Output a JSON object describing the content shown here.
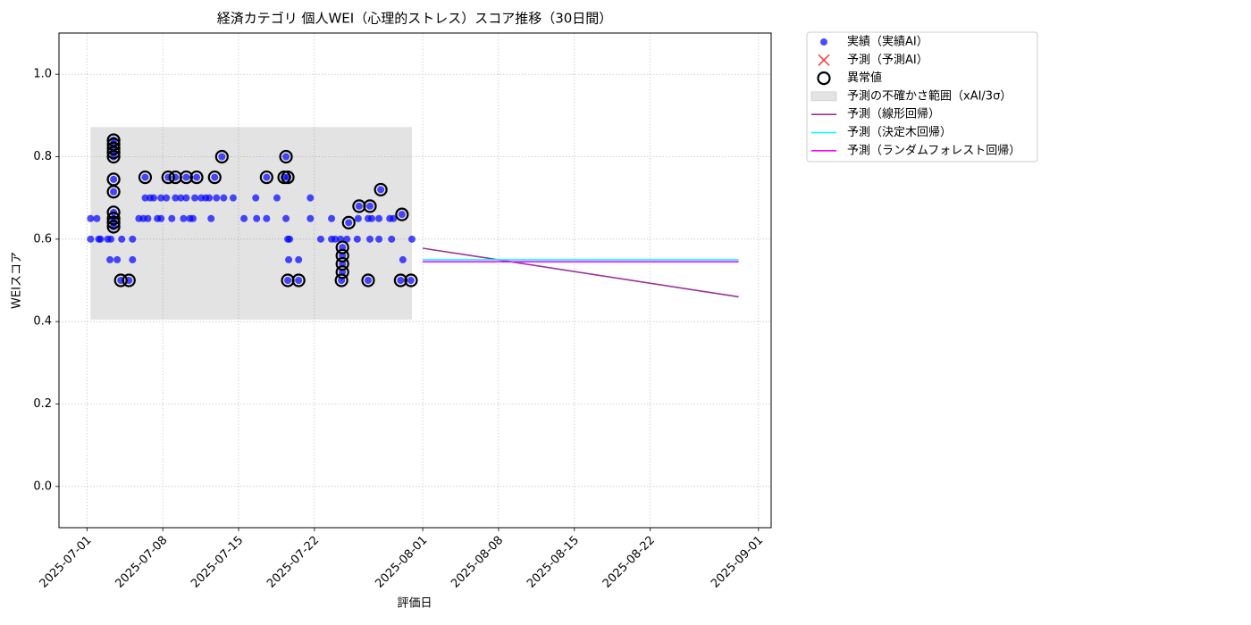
{
  "chart_data": {
    "type": "scatter",
    "title": "経済カテゴリ 個人WEI（心理的ストレス）スコア推移（30日間）",
    "xlabel": "評価日",
    "ylabel": "WEIスコア",
    "xlim": [
      "2025-06-28T10:00",
      "2025-09-02T04:00"
    ],
    "xticks": [
      "2025-07-01",
      "2025-07-08",
      "2025-07-15",
      "2025-07-22",
      "2025-08-01",
      "2025-08-08",
      "2025-08-15",
      "2025-08-22",
      "2025-09-01"
    ],
    "ylim": [
      -0.1,
      1.1
    ],
    "yticks": [
      {
        "value": 0,
        "label": "0.0"
      },
      0.2,
      0.4,
      0.6,
      0.8,
      {
        "value": 1,
        "label": "1.0"
      }
    ],
    "grid": true,
    "legend": "outside-upper-right",
    "series": [
      {
        "name": "実績（実績AI）",
        "kind": "scatter",
        "color": "#0000ff",
        "x": [
          "2025-07-01T08:00",
          "2025-07-01T08:00",
          "2025-07-01T22:00",
          "2025-07-02T02:00",
          "2025-07-02T06:00",
          "2025-07-02T22:00",
          "2025-07-03T03:00",
          "2025-07-03T05:00",
          "2025-07-03T11:00",
          "2025-07-03T11:00",
          "2025-07-03T11:00",
          "2025-07-03T11:00",
          "2025-07-03T11:00",
          "2025-07-03T11:00",
          "2025-07-03T11:00",
          "2025-07-03T11:00",
          "2025-07-03T11:00",
          "2025-07-03T11:00",
          "2025-07-03T11:00",
          "2025-07-03T19:00",
          "2025-07-04T03:00",
          "2025-07-04T05:00",
          "2025-07-04T21:00",
          "2025-07-05T05:00",
          "2025-07-05T05:00",
          "2025-07-05T19:00",
          "2025-07-06T05:00",
          "2025-07-06T09:00",
          "2025-07-06T09:00",
          "2025-07-06T15:00",
          "2025-07-06T20:00",
          "2025-07-07T04:00",
          "2025-07-07T12:00",
          "2025-07-07T20:00",
          "2025-07-07T20:00",
          "2025-07-08T08:00",
          "2025-07-08T12:00",
          "2025-07-08T20:00",
          "2025-07-09T04:00",
          "2025-07-09T04:00",
          "2025-07-09T16:00",
          "2025-07-09T22:00",
          "2025-07-10T04:00",
          "2025-07-10T04:00",
          "2025-07-10T12:00",
          "2025-07-10T19:00",
          "2025-07-10T23:00",
          "2025-07-11T03:00",
          "2025-07-11T13:00",
          "2025-07-11T23:00",
          "2025-07-12T07:00",
          "2025-07-12T11:00",
          "2025-07-12T19:00",
          "2025-07-12T23:00",
          "2025-07-13T11:00",
          "2025-07-13T15:00",
          "2025-07-14T12:00",
          "2025-07-15T12:00",
          "2025-07-16T14:00",
          "2025-07-16T16:00",
          "2025-07-17T14:00",
          "2025-07-17T14:00",
          "2025-07-18T13:00",
          "2025-07-19T05:00",
          "2025-07-19T09:00",
          "2025-07-19T09:00",
          "2025-07-19T13:00",
          "2025-07-19T13:00",
          "2025-07-19T13:00",
          "2025-07-19T15:00",
          "2025-07-19T17:00",
          "2025-07-20T13:00",
          "2025-07-20T13:00",
          "2025-07-21T15:00",
          "2025-07-21T15:00",
          "2025-07-22T14:00",
          "2025-07-23T14:00",
          "2025-07-23T14:00",
          "2025-07-23T22:00",
          "2025-07-24T10:00",
          "2025-07-24T12:00",
          "2025-07-24T14:00",
          "2025-07-24T14:00",
          "2025-07-24T14:00",
          "2025-07-24T14:00",
          "2025-07-25T00:00",
          "2025-07-25T04:00",
          "2025-07-25T23:00",
          "2025-07-26T01:00",
          "2025-07-26T03:00",
          "2025-07-26T23:00",
          "2025-07-26T23:00",
          "2025-07-27T03:00",
          "2025-07-27T03:00",
          "2025-07-27T07:00",
          "2025-07-27T23:00",
          "2025-07-27T23:00",
          "2025-07-28T03:00",
          "2025-07-28T23:00",
          "2025-07-29T03:00",
          "2025-07-29T07:00",
          "2025-07-29T23:00",
          "2025-07-30T02:00",
          "2025-07-30T04:00",
          "2025-07-30T22:00",
          "2025-07-31T00:00"
        ],
        "values": [
          0.65,
          0.6,
          0.65,
          0.6,
          0.6,
          0.6,
          0.55,
          0.6,
          0.84,
          0.83,
          0.82,
          0.81,
          0.8,
          0.745,
          0.715,
          0.665,
          0.65,
          0.64,
          0.63,
          0.55,
          0.5,
          0.6,
          0.5,
          0.6,
          0.55,
          0.65,
          0.65,
          0.7,
          0.75,
          0.65,
          0.7,
          0.7,
          0.65,
          0.65,
          0.7,
          0.7,
          0.75,
          0.65,
          0.7,
          0.75,
          0.7,
          0.65,
          0.75,
          0.7,
          0.65,
          0.65,
          0.7,
          0.75,
          0.7,
          0.7,
          0.7,
          0.65,
          0.75,
          0.7,
          0.8,
          0.7,
          0.7,
          0.65,
          0.7,
          0.65,
          0.65,
          0.75,
          0.7,
          0.75,
          0.8,
          0.65,
          0.75,
          0.6,
          0.5,
          0.55,
          0.6,
          0.55,
          0.5,
          0.7,
          0.65,
          0.6,
          0.65,
          0.6,
          0.6,
          0.6,
          0.5,
          0.52,
          0.54,
          0.56,
          0.58,
          0.6,
          0.64,
          0.6,
          0.65,
          0.68,
          0.65,
          0.5,
          0.68,
          0.6,
          0.65,
          0.65,
          0.6,
          0.72,
          0.65,
          0.6,
          0.65,
          0.5,
          0.66,
          0.55,
          0.5,
          0.6
        ]
      },
      {
        "name": "予測（予測AI）",
        "kind": "cross",
        "color": "#ff0000"
      },
      {
        "name": "異常値",
        "kind": "ring",
        "color": "#000000",
        "x": [
          "2025-07-03T11:00",
          "2025-07-03T11:00",
          "2025-07-03T11:00",
          "2025-07-03T11:00",
          "2025-07-03T11:00",
          "2025-07-03T11:00",
          "2025-07-03T11:00",
          "2025-07-03T11:00",
          "2025-07-03T11:00",
          "2025-07-03T11:00",
          "2025-07-03T11:00",
          "2025-07-04T03:00",
          "2025-07-04T21:00",
          "2025-07-06T09:00",
          "2025-07-08T12:00",
          "2025-07-09T04:00",
          "2025-07-10T04:00",
          "2025-07-11T03:00",
          "2025-07-12T19:00",
          "2025-07-13T11:00",
          "2025-07-17T14:00",
          "2025-07-19T05:00",
          "2025-07-19T09:00",
          "2025-07-19T13:00",
          "2025-07-19T13:00",
          "2025-07-20T13:00",
          "2025-07-24T12:00",
          "2025-07-24T14:00",
          "2025-07-24T14:00",
          "2025-07-24T14:00",
          "2025-07-24T14:00",
          "2025-07-25T04:00",
          "2025-07-26T03:00",
          "2025-07-26T23:00",
          "2025-07-27T03:00",
          "2025-07-28T03:00",
          "2025-07-29T23:00",
          "2025-07-30T02:00",
          "2025-07-30T22:00"
        ],
        "values": [
          0.84,
          0.83,
          0.82,
          0.81,
          0.8,
          0.745,
          0.715,
          0.665,
          0.65,
          0.64,
          0.63,
          0.5,
          0.5,
          0.75,
          0.75,
          0.75,
          0.75,
          0.75,
          0.75,
          0.8,
          0.75,
          0.75,
          0.8,
          0.75,
          0.5,
          0.5,
          0.5,
          0.52,
          0.54,
          0.56,
          0.58,
          0.64,
          0.68,
          0.5,
          0.68,
          0.72,
          0.5,
          0.66,
          0.5
        ]
      },
      {
        "name": "予測の不確かさ範囲（xAI/3σ）",
        "kind": "band",
        "color": "#808080",
        "x": [
          "2025-07-01T08:00",
          "2025-07-31T00:00"
        ],
        "lower": [
          0.405,
          0.405
        ],
        "upper": [
          0.872,
          0.872
        ]
      },
      {
        "name": "予測（線形回帰）",
        "kind": "line",
        "color": "#993399",
        "x": [
          "2025-08-01",
          "2025-08-30T04:00"
        ],
        "values": [
          0.578,
          0.46
        ]
      },
      {
        "name": "予測（決定木回帰）",
        "kind": "line",
        "color": "#00ffff",
        "x": [
          "2025-08-01",
          "2025-08-30T04:00"
        ],
        "values": [
          0.55,
          0.55
        ]
      },
      {
        "name": "予測（ランダムフォレスト回帰）",
        "kind": "line",
        "color": "#ff00ff",
        "x": [
          "2025-08-01",
          "2025-08-30T04:00"
        ],
        "values": [
          0.545,
          0.545
        ]
      }
    ]
  }
}
